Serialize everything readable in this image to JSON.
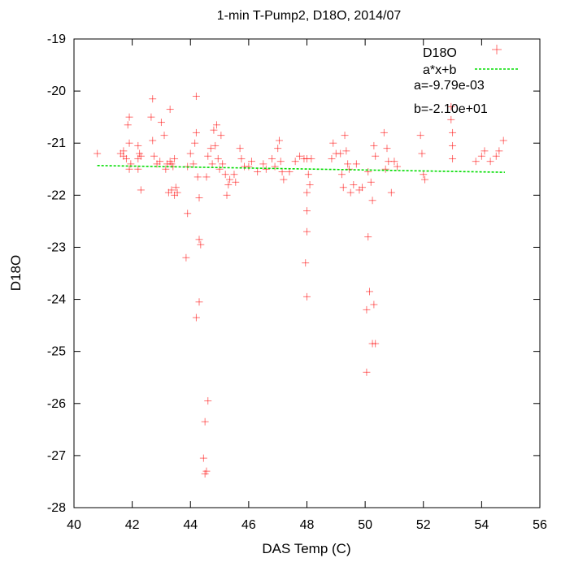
{
  "chart_data": {
    "type": "scatter",
    "title": "1-min T-Pump2, D18O, 2014/07",
    "xlabel": "DAS Temp (C)",
    "ylabel": "D18O",
    "xlim": [
      40,
      56
    ],
    "ylim": [
      -28,
      -19
    ],
    "x_ticks": [
      40,
      42,
      44,
      46,
      48,
      50,
      52,
      54,
      56
    ],
    "y_ticks": [
      -28,
      -27,
      -26,
      -25,
      -24,
      -23,
      -22,
      -21,
      -20,
      -19
    ],
    "grid": false,
    "legend_position": "top-right",
    "colors": {
      "scatter": "#ff0000",
      "fit": "#00dd00"
    },
    "series": [
      {
        "name": "D18O",
        "marker": "plus",
        "points": [
          [
            40.8,
            -21.2
          ],
          [
            41.6,
            -21.2
          ],
          [
            41.7,
            -21.15
          ],
          [
            41.8,
            -21.3
          ],
          [
            41.7,
            -21.25
          ],
          [
            41.9,
            -20.5
          ],
          [
            41.85,
            -20.65
          ],
          [
            41.9,
            -21.0
          ],
          [
            41.95,
            -21.4
          ],
          [
            41.9,
            -21.5
          ],
          [
            42.2,
            -21.3
          ],
          [
            42.25,
            -21.2
          ],
          [
            42.3,
            -21.25
          ],
          [
            42.2,
            -21.5
          ],
          [
            42.3,
            -21.9
          ],
          [
            42.2,
            -21.05
          ],
          [
            42.7,
            -20.15
          ],
          [
            42.65,
            -20.5
          ],
          [
            42.7,
            -20.95
          ],
          [
            42.75,
            -21.25
          ],
          [
            42.85,
            -21.4
          ],
          [
            42.95,
            -21.35
          ],
          [
            43.0,
            -20.6
          ],
          [
            43.1,
            -20.85
          ],
          [
            43.15,
            -21.5
          ],
          [
            43.2,
            -21.4
          ],
          [
            43.3,
            -21.35
          ],
          [
            43.35,
            -21.4
          ],
          [
            43.4,
            -21.45
          ],
          [
            43.45,
            -21.3
          ],
          [
            43.3,
            -20.35
          ],
          [
            43.25,
            -21.95
          ],
          [
            43.35,
            -21.9
          ],
          [
            43.45,
            -22.0
          ],
          [
            43.5,
            -21.85
          ],
          [
            43.55,
            -21.95
          ],
          [
            43.9,
            -22.35
          ],
          [
            43.85,
            -23.2
          ],
          [
            43.9,
            -21.45
          ],
          [
            44.0,
            -21.2
          ],
          [
            44.1,
            -21.4
          ],
          [
            44.15,
            -21.0
          ],
          [
            44.2,
            -20.1
          ],
          [
            44.2,
            -20.8
          ],
          [
            44.25,
            -21.65
          ],
          [
            44.3,
            -22.05
          ],
          [
            44.3,
            -22.85
          ],
          [
            44.35,
            -22.95
          ],
          [
            44.3,
            -24.05
          ],
          [
            44.2,
            -24.35
          ],
          [
            44.45,
            -27.05
          ],
          [
            44.5,
            -27.35
          ],
          [
            44.55,
            -27.3
          ],
          [
            44.5,
            -26.35
          ],
          [
            44.6,
            -25.95
          ],
          [
            44.55,
            -21.65
          ],
          [
            44.6,
            -21.25
          ],
          [
            44.7,
            -21.1
          ],
          [
            44.75,
            -21.4
          ],
          [
            44.8,
            -20.75
          ],
          [
            44.85,
            -21.05
          ],
          [
            44.9,
            -20.65
          ],
          [
            44.95,
            -21.3
          ],
          [
            45.0,
            -21.5
          ],
          [
            45.05,
            -20.85
          ],
          [
            45.1,
            -21.4
          ],
          [
            45.2,
            -21.6
          ],
          [
            45.25,
            -22.0
          ],
          [
            45.3,
            -21.8
          ],
          [
            45.35,
            -21.7
          ],
          [
            45.5,
            -21.6
          ],
          [
            45.55,
            -21.75
          ],
          [
            45.7,
            -21.1
          ],
          [
            45.75,
            -21.3
          ],
          [
            45.85,
            -21.45
          ],
          [
            46.0,
            -21.45
          ],
          [
            46.1,
            -21.35
          ],
          [
            46.3,
            -21.55
          ],
          [
            46.5,
            -21.4
          ],
          [
            46.6,
            -21.5
          ],
          [
            46.8,
            -21.3
          ],
          [
            46.9,
            -21.45
          ],
          [
            47.0,
            -21.1
          ],
          [
            47.05,
            -20.95
          ],
          [
            47.1,
            -21.35
          ],
          [
            47.15,
            -21.55
          ],
          [
            47.2,
            -21.7
          ],
          [
            47.4,
            -21.55
          ],
          [
            47.6,
            -21.35
          ],
          [
            47.75,
            -21.25
          ],
          [
            47.9,
            -21.3
          ],
          [
            48.0,
            -21.3
          ],
          [
            48.05,
            -21.6
          ],
          [
            48.0,
            -21.95
          ],
          [
            48.0,
            -22.3
          ],
          [
            48.0,
            -22.7
          ],
          [
            47.95,
            -23.3
          ],
          [
            48.0,
            -23.95
          ],
          [
            48.1,
            -21.8
          ],
          [
            48.15,
            -21.3
          ],
          [
            48.85,
            -21.3
          ],
          [
            48.9,
            -21.0
          ],
          [
            49.0,
            -21.2
          ],
          [
            49.15,
            -21.2
          ],
          [
            49.2,
            -21.6
          ],
          [
            49.25,
            -21.85
          ],
          [
            49.3,
            -20.85
          ],
          [
            49.35,
            -21.15
          ],
          [
            49.4,
            -21.4
          ],
          [
            49.45,
            -21.5
          ],
          [
            49.5,
            -21.95
          ],
          [
            49.6,
            -21.8
          ],
          [
            49.7,
            -21.4
          ],
          [
            49.8,
            -21.9
          ],
          [
            49.9,
            -21.85
          ],
          [
            50.1,
            -21.55
          ],
          [
            50.2,
            -21.75
          ],
          [
            50.25,
            -22.1
          ],
          [
            50.1,
            -22.8
          ],
          [
            50.15,
            -23.85
          ],
          [
            50.05,
            -24.2
          ],
          [
            50.3,
            -24.1
          ],
          [
            50.35,
            -24.85
          ],
          [
            50.25,
            -24.85
          ],
          [
            50.05,
            -25.4
          ],
          [
            50.3,
            -21.05
          ],
          [
            50.35,
            -21.25
          ],
          [
            50.7,
            -21.5
          ],
          [
            50.75,
            -21.1
          ],
          [
            50.8,
            -21.35
          ],
          [
            50.65,
            -20.8
          ],
          [
            50.9,
            -21.95
          ],
          [
            51.0,
            -21.35
          ],
          [
            51.1,
            -21.45
          ],
          [
            51.9,
            -20.85
          ],
          [
            51.95,
            -21.2
          ],
          [
            52.0,
            -21.6
          ],
          [
            52.05,
            -21.7
          ],
          [
            52.95,
            -20.3
          ],
          [
            52.95,
            -20.55
          ],
          [
            53.0,
            -20.8
          ],
          [
            53.0,
            -21.05
          ],
          [
            53.0,
            -21.3
          ],
          [
            53.8,
            -21.35
          ],
          [
            54.0,
            -21.25
          ],
          [
            54.1,
            -21.15
          ],
          [
            54.3,
            -21.35
          ],
          [
            54.5,
            -21.25
          ],
          [
            54.6,
            -21.15
          ],
          [
            54.75,
            -20.95
          ]
        ]
      },
      {
        "name": "a*x+b",
        "type": "line",
        "points": [
          [
            40.8,
            -21.43
          ],
          [
            54.8,
            -21.56
          ]
        ]
      }
    ],
    "annotations": [
      "a=-9.79e-03",
      "b=-2.10e+01"
    ]
  }
}
